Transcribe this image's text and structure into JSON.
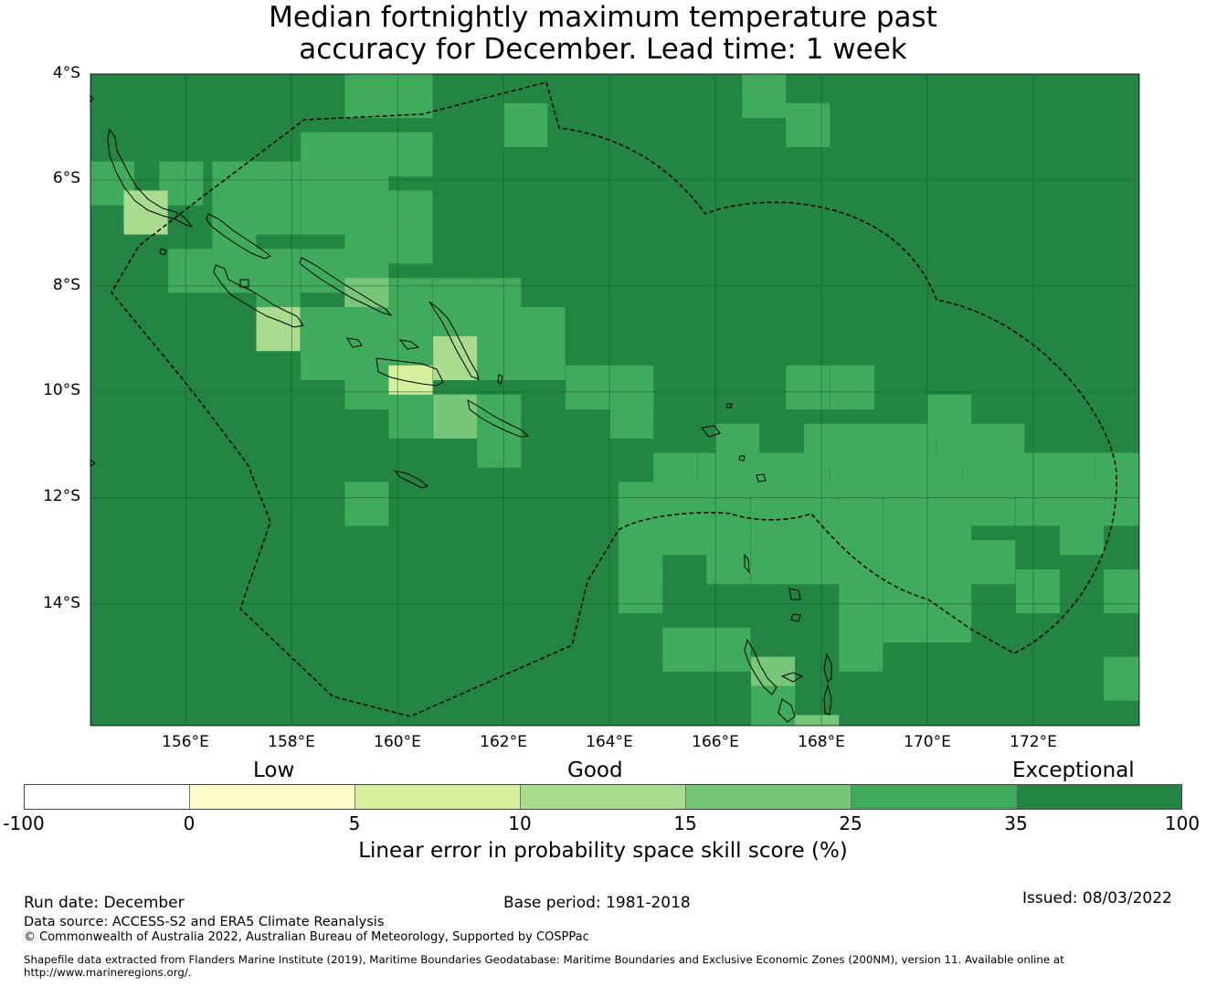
{
  "title": {
    "line1": "Median fortnightly maximum temperature past",
    "line2": "accuracy for December. Lead time: 1 week"
  },
  "map": {
    "lat_labels": [
      "4°S",
      "6°S",
      "8°S",
      "10°S",
      "12°S",
      "14°S"
    ],
    "lon_labels": [
      "156°E",
      "158°E",
      "160°E",
      "162°E",
      "164°E",
      "166°E",
      "168°E",
      "170°E",
      "172°E"
    ],
    "lat_range": [
      -4,
      -16.3
    ],
    "lon_range": [
      154.2,
      174
    ],
    "grid_res_deg": 0.83,
    "default_category": "exceptional_dark",
    "cells": [
      {
        "lat": -4.0,
        "lon": 159.0,
        "cat": "c25"
      },
      {
        "lat": -4.0,
        "lon": 159.83,
        "cat": "c25"
      },
      {
        "lat": -4.0,
        "lon": 166.5,
        "cat": "c25"
      },
      {
        "lat": -4.55,
        "lon": 162.0,
        "cat": "c25"
      },
      {
        "lat": -4.55,
        "lon": 167.33,
        "cat": "c25"
      },
      {
        "lat": -5.1,
        "lon": 158.17,
        "cat": "c25"
      },
      {
        "lat": -5.1,
        "lon": 159.0,
        "cat": "c25"
      },
      {
        "lat": -5.1,
        "lon": 159.83,
        "cat": "c25"
      },
      {
        "lat": -5.65,
        "lon": 154.2,
        "cat": "c25"
      },
      {
        "lat": -5.65,
        "lon": 155.5,
        "cat": "c25"
      },
      {
        "lat": -5.65,
        "lon": 156.5,
        "cat": "c25"
      },
      {
        "lat": -5.65,
        "lon": 157.33,
        "cat": "c25"
      },
      {
        "lat": -5.65,
        "lon": 158.17,
        "cat": "c25"
      },
      {
        "lat": -5.65,
        "lon": 159.0,
        "cat": "c25"
      },
      {
        "lat": -6.2,
        "lon": 154.83,
        "cat": "c10"
      },
      {
        "lat": -6.2,
        "lon": 156.5,
        "cat": "c25"
      },
      {
        "lat": -6.2,
        "lon": 157.33,
        "cat": "c25"
      },
      {
        "lat": -6.2,
        "lon": 158.17,
        "cat": "c25"
      },
      {
        "lat": -6.2,
        "lon": 159.0,
        "cat": "c25"
      },
      {
        "lat": -6.2,
        "lon": 159.83,
        "cat": "c25"
      },
      {
        "lat": -6.75,
        "lon": 156.5,
        "cat": "c25"
      },
      {
        "lat": -6.75,
        "lon": 159.0,
        "cat": "c25"
      },
      {
        "lat": -6.75,
        "lon": 159.83,
        "cat": "c25"
      },
      {
        "lat": -7.3,
        "lon": 155.67,
        "cat": "c25"
      },
      {
        "lat": -7.3,
        "lon": 156.5,
        "cat": "c25"
      },
      {
        "lat": -7.3,
        "lon": 157.33,
        "cat": "c25"
      },
      {
        "lat": -7.3,
        "lon": 158.17,
        "cat": "c25"
      },
      {
        "lat": -7.3,
        "lon": 159.0,
        "cat": "c25"
      },
      {
        "lat": -7.85,
        "lon": 157.33,
        "cat": "c25"
      },
      {
        "lat": -7.85,
        "lon": 159.0,
        "cat": "c15"
      },
      {
        "lat": -7.85,
        "lon": 159.83,
        "cat": "c25"
      },
      {
        "lat": -7.85,
        "lon": 160.67,
        "cat": "c25"
      },
      {
        "lat": -7.85,
        "lon": 161.5,
        "cat": "c25"
      },
      {
        "lat": -8.4,
        "lon": 157.33,
        "cat": "c10"
      },
      {
        "lat": -8.4,
        "lon": 158.17,
        "cat": "c25"
      },
      {
        "lat": -8.4,
        "lon": 159.0,
        "cat": "c25"
      },
      {
        "lat": -8.4,
        "lon": 159.83,
        "cat": "c25"
      },
      {
        "lat": -8.4,
        "lon": 160.67,
        "cat": "c25"
      },
      {
        "lat": -8.4,
        "lon": 161.5,
        "cat": "c25"
      },
      {
        "lat": -8.4,
        "lon": 162.33,
        "cat": "c25"
      },
      {
        "lat": -8.95,
        "lon": 158.17,
        "cat": "c25"
      },
      {
        "lat": -8.95,
        "lon": 159.0,
        "cat": "c25"
      },
      {
        "lat": -8.95,
        "lon": 159.83,
        "cat": "c25"
      },
      {
        "lat": -8.95,
        "lon": 160.67,
        "cat": "c10"
      },
      {
        "lat": -8.95,
        "lon": 161.5,
        "cat": "c25"
      },
      {
        "lat": -8.95,
        "lon": 162.33,
        "cat": "c25"
      },
      {
        "lat": -9.5,
        "lon": 159.0,
        "cat": "c25"
      },
      {
        "lat": -9.5,
        "lon": 159.83,
        "cat": "c5"
      },
      {
        "lat": -9.5,
        "lon": 163.17,
        "cat": "c25"
      },
      {
        "lat": -9.5,
        "lon": 164.0,
        "cat": "c25"
      },
      {
        "lat": -9.5,
        "lon": 167.33,
        "cat": "c25"
      },
      {
        "lat": -9.5,
        "lon": 168.17,
        "cat": "c25"
      },
      {
        "lat": -10.05,
        "lon": 159.83,
        "cat": "c25"
      },
      {
        "lat": -10.05,
        "lon": 160.67,
        "cat": "c15"
      },
      {
        "lat": -10.05,
        "lon": 161.5,
        "cat": "c25"
      },
      {
        "lat": -10.05,
        "lon": 164.0,
        "cat": "c25"
      },
      {
        "lat": -10.05,
        "lon": 170.0,
        "cat": "c25"
      },
      {
        "lat": -10.6,
        "lon": 161.5,
        "cat": "c25"
      },
      {
        "lat": -10.6,
        "lon": 166.0,
        "cat": "c25"
      },
      {
        "lat": -10.6,
        "lon": 167.67,
        "cat": "c25"
      },
      {
        "lat": -10.6,
        "lon": 168.5,
        "cat": "c25"
      },
      {
        "lat": -10.6,
        "lon": 169.33,
        "cat": "c25"
      },
      {
        "lat": -10.6,
        "lon": 170.17,
        "cat": "c25"
      },
      {
        "lat": -10.6,
        "lon": 171.0,
        "cat": "c25"
      },
      {
        "lat": -11.15,
        "lon": 164.83,
        "cat": "c25"
      },
      {
        "lat": -11.15,
        "lon": 165.67,
        "cat": "c25"
      },
      {
        "lat": -11.15,
        "lon": 166.5,
        "cat": "c25"
      },
      {
        "lat": -11.15,
        "lon": 167.33,
        "cat": "c25"
      },
      {
        "lat": -11.15,
        "lon": 168.17,
        "cat": "c25"
      },
      {
        "lat": -11.15,
        "lon": 169.0,
        "cat": "c25"
      },
      {
        "lat": -11.15,
        "lon": 169.83,
        "cat": "c25"
      },
      {
        "lat": -11.15,
        "lon": 170.67,
        "cat": "c25"
      },
      {
        "lat": -11.15,
        "lon": 171.5,
        "cat": "c25"
      },
      {
        "lat": -11.15,
        "lon": 172.33,
        "cat": "c25"
      },
      {
        "lat": -11.15,
        "lon": 173.17,
        "cat": "c25"
      },
      {
        "lat": -11.7,
        "lon": 159.0,
        "cat": "c25"
      },
      {
        "lat": -11.7,
        "lon": 164.17,
        "cat": "c25"
      },
      {
        "lat": -11.7,
        "lon": 165.0,
        "cat": "c25"
      },
      {
        "lat": -11.7,
        "lon": 165.83,
        "cat": "c25"
      },
      {
        "lat": -11.7,
        "lon": 166.67,
        "cat": "c25"
      },
      {
        "lat": -11.7,
        "lon": 167.5,
        "cat": "c25"
      },
      {
        "lat": -11.7,
        "lon": 168.33,
        "cat": "c25"
      },
      {
        "lat": -11.7,
        "lon": 169.17,
        "cat": "c25"
      },
      {
        "lat": -11.7,
        "lon": 170.0,
        "cat": "c25"
      },
      {
        "lat": -11.7,
        "lon": 170.83,
        "cat": "c25"
      },
      {
        "lat": -11.7,
        "lon": 171.67,
        "cat": "c25"
      },
      {
        "lat": -11.7,
        "lon": 172.5,
        "cat": "c25"
      },
      {
        "lat": -11.7,
        "lon": 173.33,
        "cat": "c25"
      },
      {
        "lat": -12.25,
        "lon": 164.17,
        "cat": "c25"
      },
      {
        "lat": -12.25,
        "lon": 165.0,
        "cat": "c25"
      },
      {
        "lat": -12.25,
        "lon": 165.83,
        "cat": "c25"
      },
      {
        "lat": -12.25,
        "lon": 166.67,
        "cat": "c25"
      },
      {
        "lat": -12.25,
        "lon": 167.5,
        "cat": "c25"
      },
      {
        "lat": -12.25,
        "lon": 168.33,
        "cat": "c25"
      },
      {
        "lat": -12.25,
        "lon": 169.17,
        "cat": "c25"
      },
      {
        "lat": -12.25,
        "lon": 170.0,
        "cat": "c25"
      },
      {
        "lat": -12.25,
        "lon": 172.5,
        "cat": "c25"
      },
      {
        "lat": -12.8,
        "lon": 164.17,
        "cat": "c25"
      },
      {
        "lat": -12.8,
        "lon": 165.83,
        "cat": "c25"
      },
      {
        "lat": -12.8,
        "lon": 166.67,
        "cat": "c25"
      },
      {
        "lat": -12.8,
        "lon": 167.5,
        "cat": "c25"
      },
      {
        "lat": -12.8,
        "lon": 168.33,
        "cat": "c25"
      },
      {
        "lat": -12.8,
        "lon": 169.17,
        "cat": "c25"
      },
      {
        "lat": -12.8,
        "lon": 170.0,
        "cat": "c25"
      },
      {
        "lat": -12.8,
        "lon": 170.83,
        "cat": "c25"
      },
      {
        "lat": -13.35,
        "lon": 164.17,
        "cat": "c25"
      },
      {
        "lat": -13.35,
        "lon": 168.33,
        "cat": "c25"
      },
      {
        "lat": -13.35,
        "lon": 169.17,
        "cat": "c25"
      },
      {
        "lat": -13.35,
        "lon": 170.0,
        "cat": "c25"
      },
      {
        "lat": -13.35,
        "lon": 171.67,
        "cat": "c25"
      },
      {
        "lat": -13.35,
        "lon": 173.33,
        "cat": "c25"
      },
      {
        "lat": -13.9,
        "lon": 168.33,
        "cat": "c25"
      },
      {
        "lat": -13.9,
        "lon": 169.17,
        "cat": "c25"
      },
      {
        "lat": -13.9,
        "lon": 170.0,
        "cat": "c25"
      },
      {
        "lat": -14.45,
        "lon": 165.0,
        "cat": "c25"
      },
      {
        "lat": -14.45,
        "lon": 165.83,
        "cat": "c25"
      },
      {
        "lat": -14.45,
        "lon": 168.33,
        "cat": "c25"
      },
      {
        "lat": -15.0,
        "lon": 166.67,
        "cat": "c15"
      },
      {
        "lat": -15.0,
        "lon": 173.33,
        "cat": "c25"
      },
      {
        "lat": -15.55,
        "lon": 166.67,
        "cat": "c25"
      },
      {
        "lat": -16.1,
        "lon": 167.5,
        "cat": "c15"
      }
    ]
  },
  "legend": {
    "category_labels": [
      "Low",
      "Good",
      "Exceptional"
    ],
    "ticks": [
      "-100",
      "0",
      "5",
      "10",
      "15",
      "25",
      "35",
      "100"
    ],
    "colors": [
      "#ffffff",
      "#fefecb",
      "#d8ef9e",
      "#a9dc8e",
      "#78c679",
      "#41ab5d",
      "#238443"
    ],
    "title": "Linear error in probability space skill score (%)"
  },
  "footer": {
    "run_date": "Run date: December",
    "base_period": "Base period: 1981-2018",
    "issued": "Issued: 08/03/2022",
    "data_source": "Data source: ACCESS-S2 and ERA5 Climate Reanalysis",
    "copyright": "© Commonwealth of Australia 2022, Australian Bureau of Meteorology, Supported by COSPPac",
    "shapefile_line1": "Shapefile data extracted from Flanders Marine Institute (2019), Maritime Boundaries Geodatabase: Maritime Boundaries and Exclusive Economic Zones (200NM), version 11. Available online at",
    "shapefile_line2": "http://www.marineregions.org/."
  }
}
